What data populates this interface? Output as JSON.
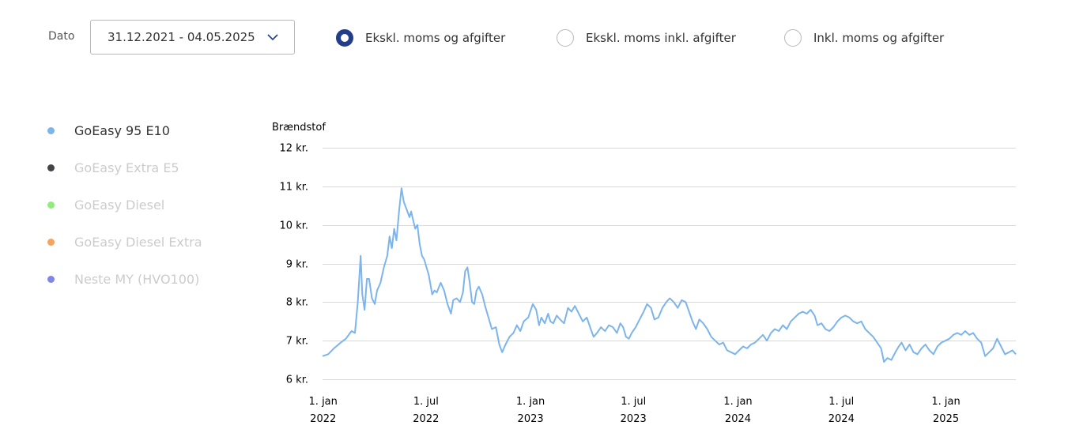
{
  "filters": {
    "date_label": "Dato",
    "date_range": "31.12.2021 - 04.05.2025",
    "options": [
      {
        "label": "Ekskl. moms og afgifter",
        "selected": true
      },
      {
        "label": "Ekskl. moms inkl. afgifter",
        "selected": false
      },
      {
        "label": "Inkl. moms og afgifter",
        "selected": false
      }
    ]
  },
  "legend": [
    {
      "label": "GoEasy 95 E10",
      "color": "#7cb5ec",
      "active": true
    },
    {
      "label": "GoEasy Extra E5",
      "color": "#434348",
      "active": false
    },
    {
      "label": "GoEasy Diesel",
      "color": "#90ed7d",
      "active": false
    },
    {
      "label": "GoEasy Diesel Extra",
      "color": "#f7a35c",
      "active": false
    },
    {
      "label": "Neste MY (HVO100)",
      "color": "#8085e9",
      "active": false
    }
  ],
  "chart_data": {
    "type": "line",
    "ylabel": "Brændstof",
    "y_ticks": [
      {
        "value": 12,
        "label": "12 kr."
      },
      {
        "value": 11,
        "label": "11 kr."
      },
      {
        "value": 10,
        "label": "10 kr."
      },
      {
        "value": 9,
        "label": "9 kr."
      },
      {
        "value": 8,
        "label": "8 kr."
      },
      {
        "value": 7,
        "label": "7 kr."
      },
      {
        "value": 6,
        "label": "6 kr."
      }
    ],
    "ylim": [
      6,
      12
    ],
    "xlim": [
      "2021-12-31",
      "2025-05-04"
    ],
    "x_ticks": [
      {
        "date": "2022-01-01",
        "line1": "1. jan",
        "line2": "2022"
      },
      {
        "date": "2022-07-01",
        "line1": "1. jul",
        "line2": "2022"
      },
      {
        "date": "2023-01-01",
        "line1": "1. jan",
        "line2": "2023"
      },
      {
        "date": "2023-07-01",
        "line1": "1. jul",
        "line2": "2023"
      },
      {
        "date": "2024-01-01",
        "line1": "1. jan",
        "line2": "2024"
      },
      {
        "date": "2024-07-01",
        "line1": "1. jul",
        "line2": "2024"
      },
      {
        "date": "2025-01-01",
        "line1": "1. jan",
        "line2": "2025"
      }
    ],
    "grid": true,
    "series": [
      {
        "name": "GoEasy 95 E10",
        "color": "#7cb5ec",
        "points": [
          [
            "2021-12-31",
            6.6
          ],
          [
            "2022-01-10",
            6.65
          ],
          [
            "2022-01-20",
            6.8
          ],
          [
            "2022-02-01",
            6.95
          ],
          [
            "2022-02-10",
            7.05
          ],
          [
            "2022-02-20",
            7.25
          ],
          [
            "2022-02-26",
            7.2
          ],
          [
            "2022-03-03",
            8.0
          ],
          [
            "2022-03-08",
            9.2
          ],
          [
            "2022-03-11",
            8.2
          ],
          [
            "2022-03-15",
            7.8
          ],
          [
            "2022-03-19",
            8.6
          ],
          [
            "2022-03-23",
            8.6
          ],
          [
            "2022-03-28",
            8.1
          ],
          [
            "2022-04-02",
            7.95
          ],
          [
            "2022-04-06",
            8.3
          ],
          [
            "2022-04-12",
            8.5
          ],
          [
            "2022-04-18",
            8.9
          ],
          [
            "2022-04-24",
            9.2
          ],
          [
            "2022-04-28",
            9.7
          ],
          [
            "2022-05-02",
            9.4
          ],
          [
            "2022-05-06",
            9.9
          ],
          [
            "2022-05-10",
            9.6
          ],
          [
            "2022-05-15",
            10.4
          ],
          [
            "2022-05-19",
            10.95
          ],
          [
            "2022-05-23",
            10.6
          ],
          [
            "2022-05-28",
            10.4
          ],
          [
            "2022-06-02",
            10.2
          ],
          [
            "2022-06-05",
            10.35
          ],
          [
            "2022-06-08",
            10.15
          ],
          [
            "2022-06-12",
            9.9
          ],
          [
            "2022-06-16",
            10.0
          ],
          [
            "2022-06-20",
            9.5
          ],
          [
            "2022-06-24",
            9.2
          ],
          [
            "2022-06-28",
            9.1
          ],
          [
            "2022-07-02",
            8.9
          ],
          [
            "2022-07-06",
            8.7
          ],
          [
            "2022-07-12",
            8.2
          ],
          [
            "2022-07-16",
            8.3
          ],
          [
            "2022-07-20",
            8.25
          ],
          [
            "2022-07-27",
            8.5
          ],
          [
            "2022-08-02",
            8.3
          ],
          [
            "2022-08-08",
            7.95
          ],
          [
            "2022-08-14",
            7.7
          ],
          [
            "2022-08-18",
            8.05
          ],
          [
            "2022-08-24",
            8.1
          ],
          [
            "2022-08-30",
            8.0
          ],
          [
            "2022-09-04",
            8.25
          ],
          [
            "2022-09-08",
            8.8
          ],
          [
            "2022-09-12",
            8.9
          ],
          [
            "2022-09-16",
            8.5
          ],
          [
            "2022-09-20",
            8.0
          ],
          [
            "2022-09-24",
            7.95
          ],
          [
            "2022-09-28",
            8.3
          ],
          [
            "2022-10-02",
            8.4
          ],
          [
            "2022-10-08",
            8.2
          ],
          [
            "2022-10-13",
            7.9
          ],
          [
            "2022-10-19",
            7.6
          ],
          [
            "2022-10-25",
            7.3
          ],
          [
            "2022-11-01",
            7.35
          ],
          [
            "2022-11-07",
            6.9
          ],
          [
            "2022-11-12",
            6.7
          ],
          [
            "2022-11-18",
            6.9
          ],
          [
            "2022-11-25",
            7.1
          ],
          [
            "2022-12-02",
            7.2
          ],
          [
            "2022-12-08",
            7.4
          ],
          [
            "2022-12-14",
            7.25
          ],
          [
            "2022-12-20",
            7.5
          ],
          [
            "2022-12-28",
            7.6
          ],
          [
            "2023-01-05",
            7.95
          ],
          [
            "2023-01-11",
            7.8
          ],
          [
            "2023-01-16",
            7.4
          ],
          [
            "2023-01-20",
            7.6
          ],
          [
            "2023-01-26",
            7.45
          ],
          [
            "2023-02-01",
            7.7
          ],
          [
            "2023-02-05",
            7.5
          ],
          [
            "2023-02-10",
            7.45
          ],
          [
            "2023-02-16",
            7.65
          ],
          [
            "2023-02-22",
            7.55
          ],
          [
            "2023-03-01",
            7.45
          ],
          [
            "2023-03-08",
            7.85
          ],
          [
            "2023-03-14",
            7.75
          ],
          [
            "2023-03-20",
            7.9
          ],
          [
            "2023-03-27",
            7.7
          ],
          [
            "2023-04-03",
            7.5
          ],
          [
            "2023-04-10",
            7.6
          ],
          [
            "2023-04-17",
            7.3
          ],
          [
            "2023-04-22",
            7.1
          ],
          [
            "2023-04-28",
            7.2
          ],
          [
            "2023-05-05",
            7.35
          ],
          [
            "2023-05-12",
            7.25
          ],
          [
            "2023-05-19",
            7.4
          ],
          [
            "2023-05-26",
            7.35
          ],
          [
            "2023-06-02",
            7.2
          ],
          [
            "2023-06-08",
            7.45
          ],
          [
            "2023-06-13",
            7.35
          ],
          [
            "2023-06-18",
            7.1
          ],
          [
            "2023-06-23",
            7.05
          ],
          [
            "2023-06-28",
            7.2
          ],
          [
            "2023-07-05",
            7.35
          ],
          [
            "2023-07-12",
            7.55
          ],
          [
            "2023-07-19",
            7.75
          ],
          [
            "2023-07-25",
            7.95
          ],
          [
            "2023-08-01",
            7.85
          ],
          [
            "2023-08-07",
            7.55
          ],
          [
            "2023-08-14",
            7.6
          ],
          [
            "2023-08-21",
            7.85
          ],
          [
            "2023-08-28",
            8.0
          ],
          [
            "2023-09-03",
            8.1
          ],
          [
            "2023-09-10",
            8.0
          ],
          [
            "2023-09-17",
            7.85
          ],
          [
            "2023-09-24",
            8.05
          ],
          [
            "2023-10-01",
            8.0
          ],
          [
            "2023-10-07",
            7.75
          ],
          [
            "2023-10-13",
            7.5
          ],
          [
            "2023-10-19",
            7.3
          ],
          [
            "2023-10-25",
            7.55
          ],
          [
            "2023-11-01",
            7.45
          ],
          [
            "2023-11-08",
            7.3
          ],
          [
            "2023-11-15",
            7.1
          ],
          [
            "2023-11-22",
            7.0
          ],
          [
            "2023-11-29",
            6.9
          ],
          [
            "2023-12-06",
            6.95
          ],
          [
            "2023-12-13",
            6.75
          ],
          [
            "2023-12-20",
            6.7
          ],
          [
            "2023-12-27",
            6.65
          ],
          [
            "2024-01-03",
            6.75
          ],
          [
            "2024-01-10",
            6.85
          ],
          [
            "2024-01-17",
            6.8
          ],
          [
            "2024-01-24",
            6.9
          ],
          [
            "2024-01-31",
            6.95
          ],
          [
            "2024-02-07",
            7.05
          ],
          [
            "2024-02-14",
            7.15
          ],
          [
            "2024-02-21",
            7.0
          ],
          [
            "2024-02-28",
            7.2
          ],
          [
            "2024-03-06",
            7.3
          ],
          [
            "2024-03-13",
            7.25
          ],
          [
            "2024-03-20",
            7.4
          ],
          [
            "2024-03-27",
            7.3
          ],
          [
            "2024-04-03",
            7.5
          ],
          [
            "2024-04-10",
            7.6
          ],
          [
            "2024-04-17",
            7.7
          ],
          [
            "2024-04-24",
            7.75
          ],
          [
            "2024-05-01",
            7.7
          ],
          [
            "2024-05-08",
            7.8
          ],
          [
            "2024-05-15",
            7.65
          ],
          [
            "2024-05-20",
            7.4
          ],
          [
            "2024-05-27",
            7.45
          ],
          [
            "2024-06-03",
            7.3
          ],
          [
            "2024-06-10",
            7.25
          ],
          [
            "2024-06-17",
            7.35
          ],
          [
            "2024-06-24",
            7.5
          ],
          [
            "2024-07-01",
            7.6
          ],
          [
            "2024-07-08",
            7.65
          ],
          [
            "2024-07-15",
            7.6
          ],
          [
            "2024-07-22",
            7.5
          ],
          [
            "2024-07-29",
            7.45
          ],
          [
            "2024-08-05",
            7.5
          ],
          [
            "2024-08-12",
            7.3
          ],
          [
            "2024-08-19",
            7.2
          ],
          [
            "2024-08-26",
            7.1
          ],
          [
            "2024-09-02",
            6.95
          ],
          [
            "2024-09-09",
            6.8
          ],
          [
            "2024-09-14",
            6.45
          ],
          [
            "2024-09-20",
            6.55
          ],
          [
            "2024-09-27",
            6.5
          ],
          [
            "2024-10-04",
            6.7
          ],
          [
            "2024-10-10",
            6.85
          ],
          [
            "2024-10-15",
            6.95
          ],
          [
            "2024-10-22",
            6.75
          ],
          [
            "2024-10-29",
            6.9
          ],
          [
            "2024-11-05",
            6.7
          ],
          [
            "2024-11-12",
            6.65
          ],
          [
            "2024-11-19",
            6.8
          ],
          [
            "2024-11-26",
            6.9
          ],
          [
            "2024-12-03",
            6.75
          ],
          [
            "2024-12-10",
            6.65
          ],
          [
            "2024-12-17",
            6.85
          ],
          [
            "2024-12-24",
            6.95
          ],
          [
            "2024-12-31",
            7.0
          ],
          [
            "2025-01-07",
            7.05
          ],
          [
            "2025-01-14",
            7.15
          ],
          [
            "2025-01-21",
            7.2
          ],
          [
            "2025-01-28",
            7.15
          ],
          [
            "2025-02-04",
            7.25
          ],
          [
            "2025-02-11",
            7.15
          ],
          [
            "2025-02-18",
            7.2
          ],
          [
            "2025-02-25",
            7.05
          ],
          [
            "2025-03-04",
            6.95
          ],
          [
            "2025-03-11",
            6.6
          ],
          [
            "2025-03-18",
            6.7
          ],
          [
            "2025-03-25",
            6.8
          ],
          [
            "2025-04-01",
            7.05
          ],
          [
            "2025-04-08",
            6.85
          ],
          [
            "2025-04-15",
            6.65
          ],
          [
            "2025-04-22",
            6.7
          ],
          [
            "2025-04-28",
            6.75
          ],
          [
            "2025-05-04",
            6.65
          ]
        ]
      }
    ]
  }
}
